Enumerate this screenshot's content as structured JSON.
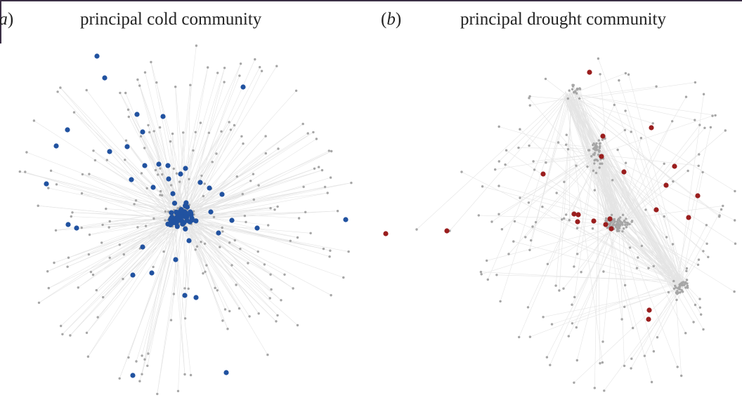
{
  "panels": [
    {
      "label": "(a)",
      "title": "principal cold community",
      "highlight_color": "#2152a0"
    },
    {
      "label": "(b)",
      "title": "principal drought community",
      "highlight_color": "#9a1e1e"
    }
  ],
  "colors": {
    "node": "#a6a6a6",
    "edge": "#e4e4e4",
    "border": "#3b2f45"
  }
}
